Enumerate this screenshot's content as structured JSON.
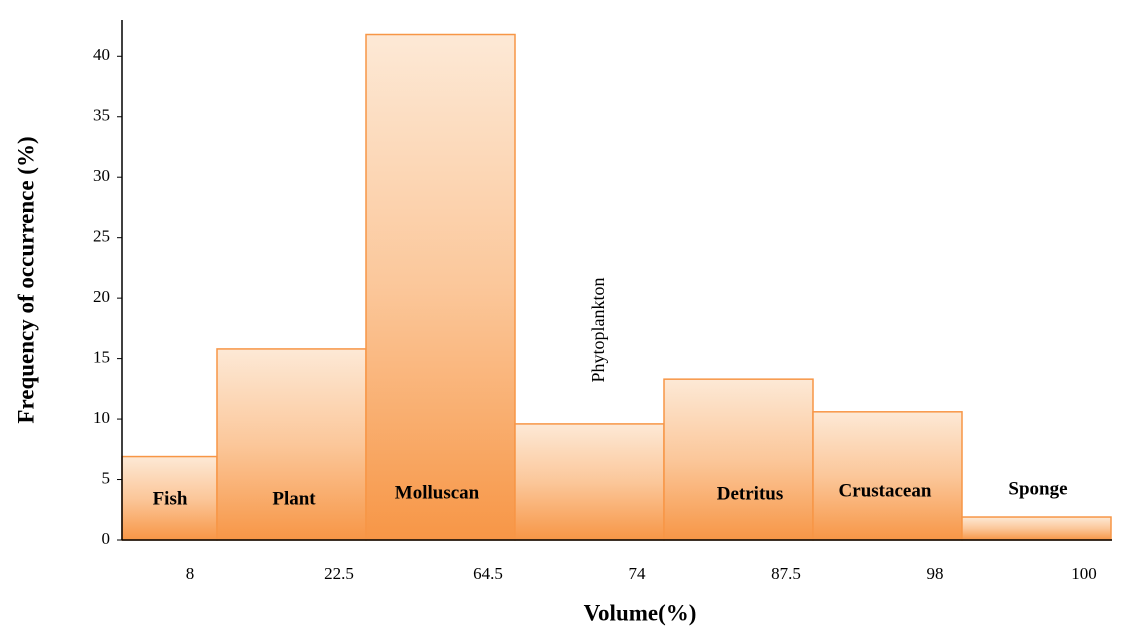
{
  "chart_data": {
    "type": "bar",
    "xlabel": "Volume(%)",
    "ylabel": "Frequency of occurrence (%)",
    "categories": [
      "8",
      "22.5",
      "64.5",
      "74",
      "87.5",
      "98",
      "100"
    ],
    "bar_labels": [
      "Fish",
      "Plant",
      "Molluscan",
      "Phytoplankton",
      "Detritus",
      "Crustacean",
      "Sponge"
    ],
    "values": [
      6.9,
      15.8,
      41.8,
      9.6,
      13.3,
      10.6,
      1.9
    ],
    "color": "#f79646",
    "ylim": [
      0,
      43
    ],
    "yticks": [
      0,
      5,
      10,
      15,
      20,
      25,
      30,
      35,
      40
    ],
    "grid": false
  }
}
